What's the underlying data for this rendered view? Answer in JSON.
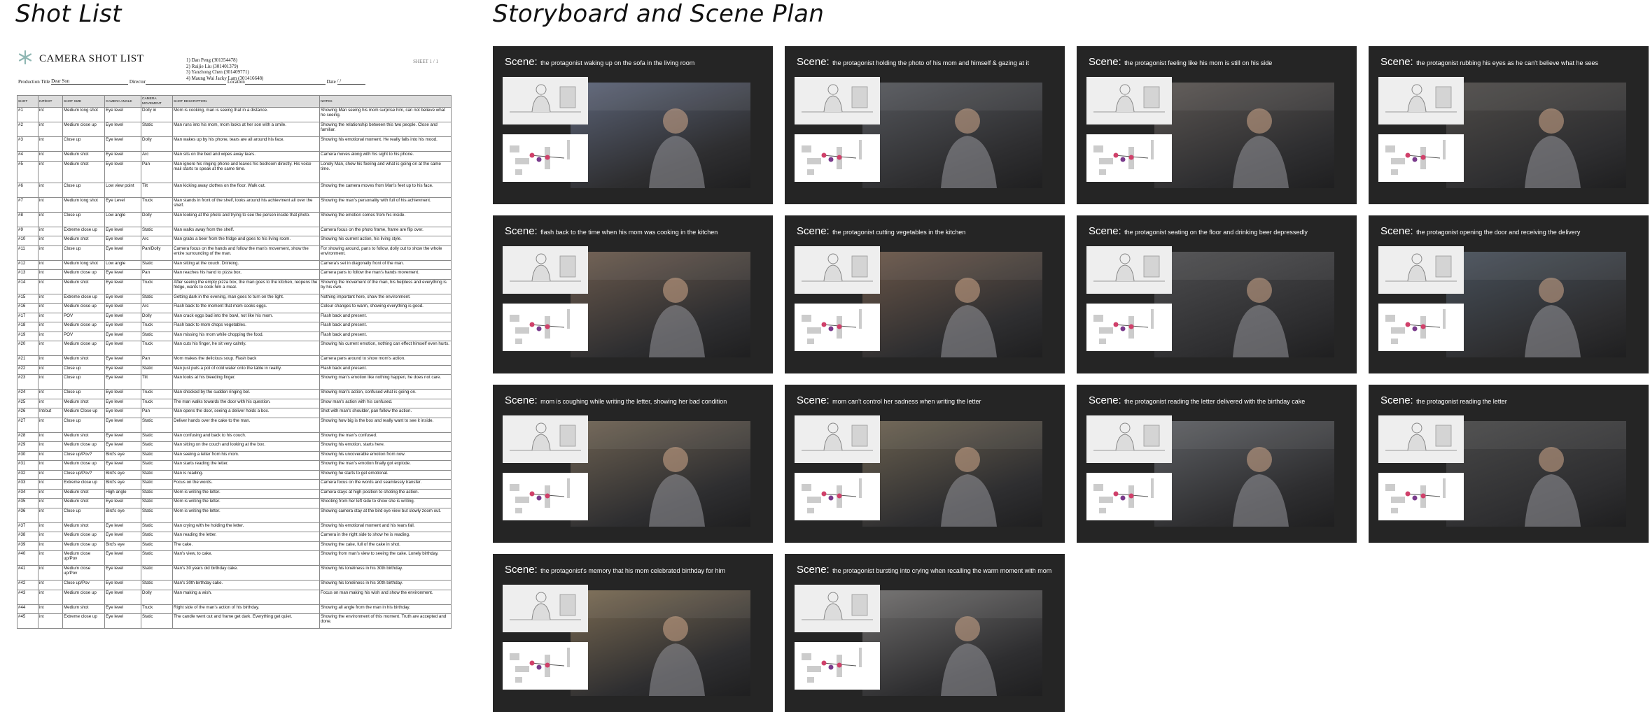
{
  "headings": {
    "shot_list": "Shot List",
    "storyboard": "Storyboard and Scene Plan"
  },
  "document": {
    "title": "CAMERA SHOT LIST",
    "members": [
      "1) Dan Peng (301354478)",
      "2) Ruijie Liu (301401379)",
      "3) Yanzhong Chen (301409771)",
      "4) Maung Wai Jacky Lam (301416648)"
    ],
    "sheet": "SHEET 1 / 1",
    "production_title_label": "Production Title",
    "production_title": "Dear Son",
    "director_label": "Director",
    "location_label": "Location",
    "date_label": "Date",
    "date_value": "/     /"
  },
  "shot_table": {
    "columns": [
      "SHOT",
      "INT/EXT",
      "SHOT SIZE",
      "CAMERA ANGLE",
      "CAMERA MOVEMENT",
      "SHOT DESCRIPTION",
      "NOTES"
    ],
    "rows": [
      [
        "#1",
        "int",
        "Medium long shot",
        "Eye level",
        "Dolly in",
        "Mom is cooking, man is seeing that in a distance.",
        "Showing Man seeing his mom surprise him, can not believe what he seeing."
      ],
      [
        "#2",
        "int",
        "Medium close up",
        "Eye level",
        "Static",
        "Man runs into his mom, mom looks at her son with a smile.",
        "Showing the relationship between this two people. Close and familiar."
      ],
      [
        "#3",
        "int",
        "Close up",
        "Eye level",
        "Dolly",
        "Man wakes up by his phone, tears are all around his face.",
        "Showing his emotional moment. He really falls  into his mood."
      ],
      [
        "#4",
        "int",
        "Medium shot",
        "Eye level",
        "Arc",
        "Man sits on the bed and wipes away tears.",
        "Camera moves along with his sight to his phone."
      ],
      [
        "#5",
        "int",
        "Medium shot",
        "Eye level",
        "Pan",
        "Man ignore his ringing phone and leaves his bedroom directly. His voice mail starts to speak at the same time.",
        "Lonely Man, show his feeling and what is going on at the same time."
      ],
      [
        "#6",
        "int",
        "Close up",
        "Low view point",
        "Tilt",
        "Man kicking away clothes on the floor. Walk out.",
        "Showing the camera moves from Man's feet up to his face."
      ],
      [
        "#7",
        "int",
        "Medium long shot",
        "Eye Level",
        "Truck",
        "Man stands in front of the shelf, looks around his achievment all over the shelf.",
        "Showing the man's personality with full of his achievment."
      ],
      [
        "#8",
        "int",
        "Close up",
        "Low angle",
        "Dolly",
        "Man looking at the photo and trying to see the person inside that photo.",
        "Showing the emotion comes from his inside."
      ],
      [
        "#9",
        "int",
        "Extreme close up",
        "Eye level",
        "Static",
        "Man walks away from the shelf.",
        "Camera focus on the photo frame, frame are flip over."
      ],
      [
        "#10",
        "int",
        "Medium shot",
        "Eye level",
        "Arc",
        "Man grabs a beer from the fridge and goes to his living room.",
        "Showing his current action, his living style."
      ],
      [
        "#11",
        "int",
        "Close up",
        "Eye level",
        "Pan/Dolly",
        "Camera focus on the hands and follow the man's movement, show the entire surrounding of the man.",
        "For showing around, pans to follow, dolly out to show the whole environment."
      ],
      [
        "#12",
        "int",
        "Medium long shot",
        "Low angle",
        "Static",
        "Man sitting at the couch. Drinking.",
        "Camera's set in diagonally front of the man."
      ],
      [
        "#13",
        "int",
        "Medium close up",
        "Eye level",
        "Pan",
        "Man reaches his hand to pizza box.",
        "Camera pans to follow the man's hands movement."
      ],
      [
        "#14",
        "int",
        "Medium shot",
        "Eye level",
        "Truck",
        "After seeing the empty pizza box, the man goes to the kitchen, reopens the fridge, wants to cook him a meal.",
        "Showing the movement of the man, his helpless and everything is by his own."
      ],
      [
        "#15",
        "int",
        "Extreme close up",
        "Eye level",
        "Static",
        "Getting dark in the evening, man goes to turn on the light.",
        "Nothing important here, show the environment."
      ],
      [
        "#16",
        "int",
        "Medium close up",
        "Eye level",
        "Arc",
        "Flash back to the moment that mom cooks eggs.",
        "Colour changes to warm, showing everything is good."
      ],
      [
        "#17",
        "int",
        "POV",
        "Eye level",
        "Dolly",
        "Man crack eggs bad into the bowl, not like his mom.",
        "Flash back and present."
      ],
      [
        "#18",
        "int",
        "Medium close up",
        "Eye level",
        "Truck",
        "Flash back to mom chops vegetables.",
        "Flash back and present."
      ],
      [
        "#19",
        "int",
        "POV",
        "Eye level",
        "Static",
        "Man missing his mom while chopping the food.",
        "Flash back and present."
      ],
      [
        "#20",
        "int",
        "Medium close up",
        "Eye level",
        "Truck",
        "Man cuts his finger, he sit very calmly.",
        "Showing his current emotion, nothing can effect himself even hurts."
      ],
      [
        "#21",
        "int",
        "Medium shot",
        "Eye level",
        "Pan",
        "Mom makes the delicious soup. Flash back",
        "Camera pans around to show mom's action."
      ],
      [
        "#22",
        "int",
        "Close up",
        "Eye level",
        "Static",
        "Man just puts a pot of cold water onto the table in reality.",
        "Flash back and present."
      ],
      [
        "#23",
        "int",
        "Close up",
        "Eye level",
        "Tilt",
        "Man looks at his bleeding finger.",
        "Showing man's emotion like nothing happen, he does not care."
      ],
      [
        "#24",
        "int",
        "Close up",
        "Eye level",
        "Truck",
        "Man shocked by the sudden ringing bel.",
        "Showing man's action, confused what is going on."
      ],
      [
        "#25",
        "int",
        "Medium shot",
        "Eye level",
        "Truck",
        "The man walks towards the door with his question.",
        "Show man's action with his confused."
      ],
      [
        "#26",
        "Int/out",
        "Medium Close up",
        "Eye level",
        "Pan",
        "Man opens the door, seeing a deliver holds a box.",
        "Shot with man's shoulder, pan follow the action."
      ],
      [
        "#27",
        "int",
        "Close up",
        "Eye level",
        "Static",
        "Deliver hands over the cake to the man.",
        "Showing how big is the box and really want to see it inside."
      ],
      [
        "#28",
        "int",
        "Medium shot",
        "Eye level",
        "Static",
        "Man confusing and back to his couch.",
        "Showing the man's confused."
      ],
      [
        "#29",
        "int",
        "Medium close up",
        "Eye level",
        "Static",
        "Man sitting on the couch and looking at the box.",
        "Showing his emotion, starts here."
      ],
      [
        "#30",
        "int",
        "Close up/Pov?",
        "Bird's eye",
        "Static",
        "Man seeing a letter from his mom.",
        "Showing his uncoverable emotion from now."
      ],
      [
        "#31",
        "int",
        "Medium close up",
        "Eye level",
        "Static",
        "Man starts reading the letter.",
        "Showing the man's emotion finally got explode."
      ],
      [
        "#32",
        "int",
        "Close up/Pov?",
        "Bird's eye",
        "Static",
        "Man is reading.",
        "Showing he starts to get emotional."
      ],
      [
        "#33",
        "int",
        "Extreme close up",
        "Bird's eye",
        "Static",
        "Focus on the words.",
        "Camera focus on the words and seamlessly transfer."
      ],
      [
        "#34",
        "int",
        "Medium shot",
        "High angle",
        "Static",
        "Mom is writing the letter.",
        "Camera stays at high position to shoting the action."
      ],
      [
        "#35",
        "int",
        "Medium shot",
        "Eye level",
        "Static",
        "Mom is writing the letter.",
        "Shooting from her left side to show she is writing."
      ],
      [
        "#36",
        "int",
        "Close up",
        "Bird's eye",
        "Static",
        "Mom is writing the letter.",
        "Showing camera stay at the bird eye view but slowly zoom out."
      ],
      [
        "#37",
        "int",
        "Medium shot",
        "Eye level",
        "Static",
        "Man crying with he holding the letter.",
        "Showing his emotional moment and his tears fall."
      ],
      [
        "#38",
        "int",
        "Medium close up",
        "Eye level",
        "Static",
        "Man reading the letter.",
        "Camera in the right side to show he is reading."
      ],
      [
        "#39",
        "int",
        "Medium close up",
        "Bird's eye",
        "Static",
        "The cake.",
        "Showing the cake, full of the cake in shot."
      ],
      [
        "#40",
        "int",
        "Medium close up/Pov",
        "Eye level",
        "Static",
        "Man's view, to cake.",
        "Showing from man's view to seeing the cake. Lonely birthday."
      ],
      [
        "#41",
        "int",
        "Medium close up/Pov",
        "Eye level",
        "Static",
        "Man's 30 years old birthday cake.",
        "Showing his loneliness in his 30th birthday."
      ],
      [
        "#42",
        "int",
        "Close up/Pov",
        "Eye level",
        "Static",
        "Man's 30th birthday cake.",
        "Showing his loneliness in his 30th birthday."
      ],
      [
        "#43",
        "int",
        "Medium close up",
        "Eye level",
        "Dolly",
        "Man making a wish.",
        "Focus on man making his wish and show the environment."
      ],
      [
        "#44",
        "int",
        "Medium shot",
        "Eye level",
        "Truck",
        "Right side of the man's action of his birthday.",
        "Showing all angle from the man in his birthday."
      ],
      [
        "#45",
        "int",
        "Extreme close up",
        "Eye level",
        "Static",
        "The candle went out and frame get dark. Everything get quiet.",
        "Showing the environment of this moment. Truth are accepted and done."
      ]
    ]
  },
  "storyboard": {
    "scene_label": "Scene:",
    "panels": [
      {
        "caption": "the protagonist waking up on the sofa in the living room",
        "tone": "#5c6478"
      },
      {
        "caption": "the protagonist holding the photo of his mom and himself & gazing at it",
        "tone": "#55575c"
      },
      {
        "caption": "the protagonist feeling like his mom is still on his side",
        "tone": "#5a5552"
      },
      {
        "caption": "the protagonist rubbing his eyes as he can't believe what he sees",
        "tone": "#4e4b48"
      },
      {
        "caption": "flash back to the time when his mom was cooking in the kitchen",
        "tone": "#6b5a4d"
      },
      {
        "caption": "the protagonist cutting vegetables in the kitchen",
        "tone": "#6a5648"
      },
      {
        "caption": "the protagonist seating on the floor and drinking beer depressedly",
        "tone": "#4d4d4f"
      },
      {
        "caption": "the protagonist opening the door and receiving the delivery",
        "tone": "#47505a"
      },
      {
        "caption": "mom is coughing while writing the letter, showing her bad condition",
        "tone": "#6e6252"
      },
      {
        "caption": "mom can't control her sadness when writing the letter",
        "tone": "#6b6150"
      },
      {
        "caption": "the protagonist reading the letter delivered with the birthday cake",
        "tone": "#5d5f63"
      },
      {
        "caption": "the protagonist reading the letter",
        "tone": "#484848"
      },
      {
        "caption": "the protagonist's memory that his mom celebrated birthday for him",
        "tone": "#7a6a52"
      },
      {
        "caption": "the protagonist bursting into crying when recalling the warm moment with mom",
        "tone": "#6f6d6c"
      }
    ]
  }
}
